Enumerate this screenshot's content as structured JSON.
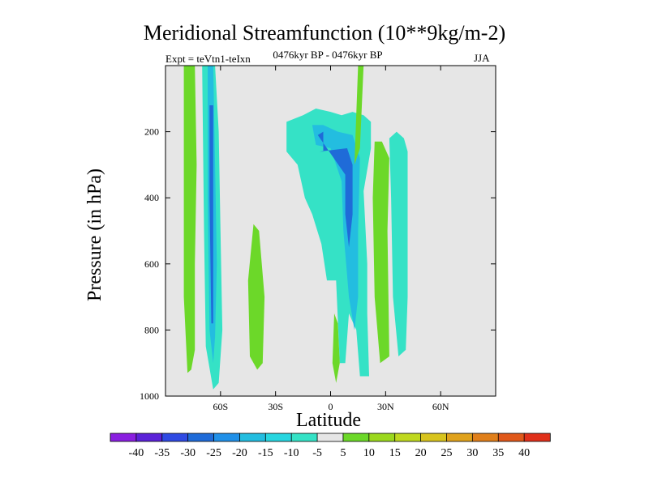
{
  "title": "Meridional Streamfunction (10**9kg/m-2)",
  "left_label": "Expt = teVtn1-teIxn",
  "subtitle": "0476kyr BP - 0476kyr BP",
  "season": "JJA",
  "colors": {
    "background": "#ffffff",
    "plot_bg": "#e6e6e6",
    "neg_light": "#35e2c6",
    "neg_mid": "#23bde0",
    "neg_dark": "#1f6bd8",
    "pos_light": "#6cd829"
  },
  "chart_data": {
    "type": "contour",
    "title": "Meridional Streamfunction (10**9kg/m-2)",
    "xlabel": "Latitude",
    "ylabel": "Pressure (in hPa)",
    "xlim": [
      -90,
      90
    ],
    "ylim": [
      1000,
      0
    ],
    "x_ticks": [
      {
        "value": -60,
        "label": "60S"
      },
      {
        "value": -30,
        "label": "30S"
      },
      {
        "value": 0,
        "label": "0"
      },
      {
        "value": 30,
        "label": "30N"
      },
      {
        "value": 60,
        "label": "60N"
      }
    ],
    "y_ticks": [
      {
        "value": 200,
        "label": "200"
      },
      {
        "value": 400,
        "label": "400"
      },
      {
        "value": 600,
        "label": "600"
      },
      {
        "value": 800,
        "label": "800"
      },
      {
        "value": 1000,
        "label": "1000"
      }
    ],
    "contour_levels": [
      -40,
      -35,
      -30,
      -25,
      -20,
      -15,
      -10,
      -5,
      5,
      10,
      15,
      20,
      25,
      30,
      35,
      40
    ],
    "colorbar_colors": [
      "#8a1fe0",
      "#5b22d8",
      "#2f4ae3",
      "#1f6bd8",
      "#2090e8",
      "#23bde0",
      "#27d6e0",
      "#35e2c6",
      "#e6e6e6",
      "#6cd829",
      "#9bd81e",
      "#bfd81f",
      "#d8c41e",
      "#e0a21c",
      "#e07f1a",
      "#e0581a",
      "#e0301a"
    ],
    "regions": [
      {
        "name": "positive-cell-70S",
        "level": 5,
        "points": [
          [
            -80,
            0
          ],
          [
            -74,
            0
          ],
          [
            -73,
            300
          ],
          [
            -74,
            600
          ],
          [
            -74,
            860
          ],
          [
            -76,
            920
          ],
          [
            -78,
            930
          ],
          [
            -80,
            700
          ]
        ]
      },
      {
        "name": "negative-cell-62S",
        "level": -5,
        "points": [
          [
            -70,
            0
          ],
          [
            -63,
            0
          ],
          [
            -61,
            200
          ],
          [
            -60,
            500
          ],
          [
            -59,
            800
          ],
          [
            -61,
            960
          ],
          [
            -64,
            980
          ],
          [
            -68,
            850
          ],
          [
            -69,
            500
          ]
        ]
      },
      {
        "name": "negative-cell-62S-core",
        "level": -15,
        "points": [
          [
            -67,
            0
          ],
          [
            -64,
            0
          ],
          [
            -63,
            300
          ],
          [
            -62,
            600
          ],
          [
            -63,
            820
          ],
          [
            -64,
            900
          ],
          [
            -66,
            800
          ],
          [
            -67,
            400
          ]
        ]
      },
      {
        "name": "negative-cell-62S-max",
        "level": -25,
        "points": [
          [
            -66,
            120
          ],
          [
            -64,
            120
          ],
          [
            -64,
            600
          ],
          [
            -64,
            780
          ],
          [
            -65,
            780
          ],
          [
            -66,
            400
          ]
        ]
      },
      {
        "name": "positive-cell-40S",
        "level": 5,
        "points": [
          [
            -42,
            480
          ],
          [
            -39,
            500
          ],
          [
            -36,
            700
          ],
          [
            -37,
            900
          ],
          [
            -40,
            920
          ],
          [
            -44,
            880
          ],
          [
            -45,
            650
          ]
        ]
      },
      {
        "name": "negative-cell-tropics-upper",
        "level": -5,
        "points": [
          [
            -24,
            170
          ],
          [
            -15,
            150
          ],
          [
            -8,
            130
          ],
          [
            0,
            140
          ],
          [
            6,
            150
          ],
          [
            12,
            140
          ],
          [
            18,
            150
          ],
          [
            22,
            170
          ],
          [
            22,
            250
          ],
          [
            18,
            380
          ],
          [
            20,
            600
          ],
          [
            20,
            750
          ],
          [
            21,
            940
          ],
          [
            16,
            940
          ],
          [
            14,
            800
          ],
          [
            10,
            750
          ],
          [
            8,
            900
          ],
          [
            5,
            900
          ],
          [
            3,
            650
          ],
          [
            -2,
            650
          ],
          [
            -5,
            540
          ],
          [
            -10,
            450
          ],
          [
            -14,
            400
          ],
          [
            -18,
            300
          ],
          [
            -24,
            260
          ]
        ]
      },
      {
        "name": "negative-cell-tropics-core",
        "level": -15,
        "points": [
          [
            -10,
            180
          ],
          [
            -4,
            180
          ],
          [
            4,
            200
          ],
          [
            12,
            210
          ],
          [
            16,
            280
          ],
          [
            15,
            500
          ],
          [
            15,
            700
          ],
          [
            13,
            800
          ],
          [
            10,
            700
          ],
          [
            7,
            500
          ],
          [
            6,
            350
          ],
          [
            0,
            250
          ],
          [
            -8,
            240
          ]
        ]
      },
      {
        "name": "negative-cell-tropics-max",
        "level": -25,
        "points": [
          [
            -7,
            210
          ],
          [
            -4,
            200
          ],
          [
            -4,
            260
          ],
          [
            -6,
            260
          ],
          [
            9,
            250
          ],
          [
            12,
            300
          ],
          [
            12,
            450
          ],
          [
            10,
            550
          ],
          [
            8,
            450
          ],
          [
            8,
            330
          ]
        ]
      },
      {
        "name": "positive-cell-3N",
        "level": 5,
        "points": [
          [
            2,
            750
          ],
          [
            4,
            780
          ],
          [
            5,
            900
          ],
          [
            3,
            960
          ],
          [
            1,
            900
          ]
        ]
      },
      {
        "name": "positive-cell-20N",
        "level": 5,
        "points": [
          [
            15,
            0
          ],
          [
            18,
            0
          ],
          [
            16,
            250
          ],
          [
            13,
            300
          ]
        ]
      },
      {
        "name": "positive-cell-26N",
        "level": 5,
        "points": [
          [
            24,
            230
          ],
          [
            28,
            230
          ],
          [
            32,
            280
          ],
          [
            31,
            500
          ],
          [
            32,
            880
          ],
          [
            27,
            900
          ],
          [
            24,
            700
          ],
          [
            23,
            400
          ]
        ]
      },
      {
        "name": "negative-cell-40N",
        "level": -5,
        "points": [
          [
            32,
            220
          ],
          [
            36,
            200
          ],
          [
            40,
            220
          ],
          [
            42,
            260
          ],
          [
            42,
            450
          ],
          [
            42,
            700
          ],
          [
            41,
            860
          ],
          [
            37,
            880
          ],
          [
            34,
            700
          ],
          [
            33,
            400
          ]
        ]
      }
    ]
  },
  "colorbar": {
    "labels": [
      "-40",
      "-35",
      "-30",
      "-25",
      "-20",
      "-15",
      "-10",
      "-5",
      "5",
      "10",
      "15",
      "20",
      "25",
      "30",
      "35",
      "40"
    ]
  }
}
